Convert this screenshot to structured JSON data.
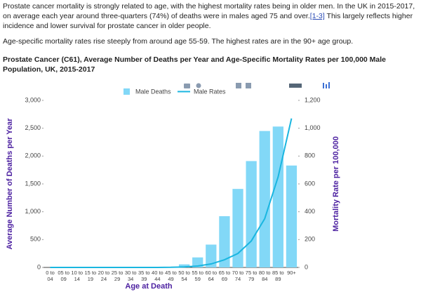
{
  "intro": {
    "before_link": "Prostate cancer mortality is strongly related to age, with the highest mortality rates being in older men. In the UK in 2015-2017, on average each year around three-quarters (74%) of deaths were in males aged 75 and over.",
    "link": "[1-3]",
    "after_link": " This largely reflects higher incidence and lower survival for prostate cancer in older people."
  },
  "paragraph2": "Age-specific mortality rates rise steeply from around age 55-59. The highest rates are in the 90+ age group.",
  "chart_data": {
    "type": "bar_line",
    "title": "Prostate Cancer (C61), Average Number of Deaths per Year and Age-Specific Mortality Rates per 100,000 Male Population, UK, 2015-2017",
    "x_label": "Age at Death",
    "y_label": "Average Number of Deaths per Year",
    "y2_label": "Mortality Rate per 100,000",
    "categories": [
      "0 to 04",
      "05 to 09",
      "10 to 14",
      "15 to 19",
      "20 to 24",
      "25 to 29",
      "30 to 34",
      "35 to 39",
      "40 to 44",
      "45 to 49",
      "50 to 54",
      "55 to 59",
      "60 to 64",
      "65 to 69",
      "70 to 74",
      "75 to 79",
      "80 to 84",
      "85 to 89",
      "90+"
    ],
    "series": [
      {
        "name": "Male Deaths",
        "kind": "bar",
        "color": "#82d8f7",
        "values": [
          0,
          0,
          0,
          0,
          0,
          0,
          0,
          1,
          3,
          12,
          55,
          180,
          410,
          920,
          1410,
          1910,
          2450,
          2530,
          1830
        ]
      },
      {
        "name": "Male Rates",
        "kind": "line",
        "axis": "y2",
        "color": "#1ab6e0",
        "values": [
          0,
          0,
          0,
          0,
          0,
          0,
          0,
          0,
          0.3,
          1,
          4,
          10,
          25,
          55,
          100,
          190,
          350,
          650,
          1070
        ]
      }
    ],
    "ylim": [
      0,
      3000
    ],
    "yticks": [
      0,
      500,
      {
        "value": 1000,
        "label": "1,000"
      },
      {
        "value": 1500,
        "label": "1,500"
      },
      {
        "value": 2000,
        "label": "2,000"
      },
      {
        "value": 2500,
        "label": "2,500"
      },
      {
        "value": 3000,
        "label": "3,000"
      }
    ],
    "y2lim": [
      0,
      1200
    ],
    "y2ticks": [
      0,
      200,
      400,
      600,
      800,
      {
        "value": 1000,
        "label": "1,000"
      },
      {
        "value": 1200,
        "label": "1,200"
      }
    ],
    "grid": false
  }
}
